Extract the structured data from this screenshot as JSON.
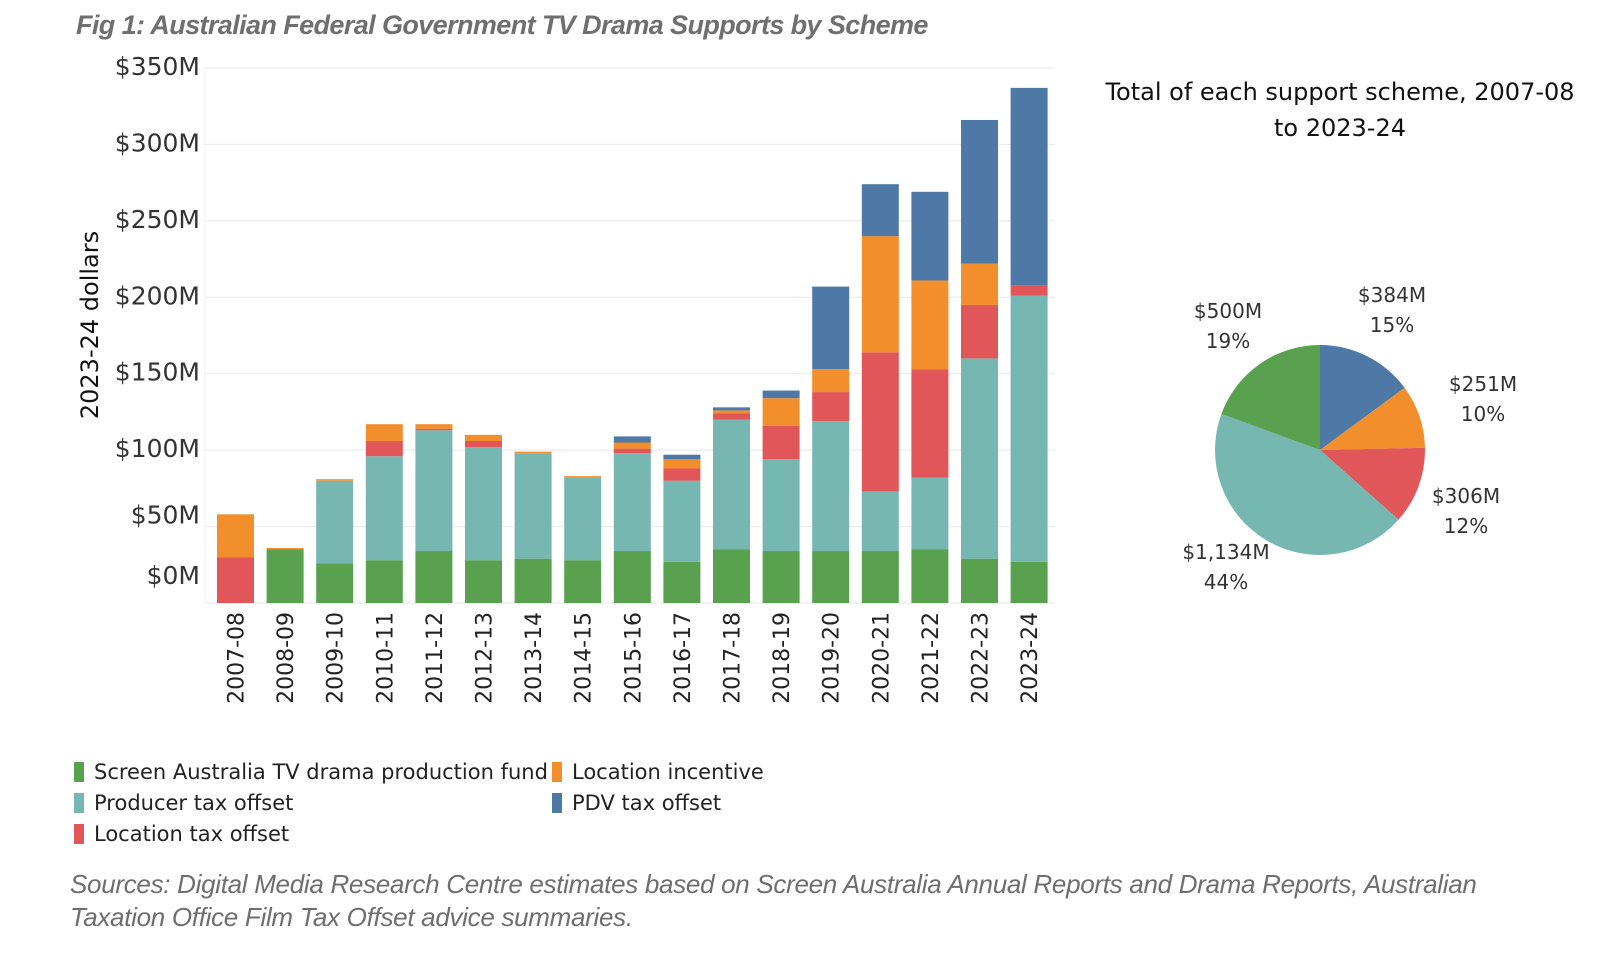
{
  "figure": {
    "title": "Fig 1: Australian Federal Government TV Drama Supports by Scheme",
    "sources": "Sources: Digital Media Research Centre estimates based on Screen Australia Annual Reports and Drama Reports, Australian Taxation Office Film Tax Offset advice summaries."
  },
  "legend": [
    {
      "label": "Screen Australia TV drama production fund",
      "color": "#59a14f"
    },
    {
      "label": "Location incentive",
      "color": "#f28e2b"
    },
    {
      "label": "Producer tax offset",
      "color": "#76b7b2"
    },
    {
      "label": "PDV tax offset",
      "color": "#4e79a7"
    },
    {
      "label": "Location tax offset",
      "color": "#e15759"
    }
  ],
  "chart_data": [
    {
      "type": "bar",
      "stacked": true,
      "title": "Fig 1: Australian Federal Government TV Drama Supports by Scheme",
      "xlabel": "",
      "ylabel": "2023-24 dollars",
      "ylim": [
        0,
        350
      ],
      "yticks": [
        0,
        50,
        100,
        150,
        200,
        250,
        300,
        350
      ],
      "ytick_labels": [
        "$0M",
        "$50M",
        "$100M",
        "$150M",
        "$200M",
        "$250M",
        "$300M",
        "$350M"
      ],
      "grid": true,
      "legend_position": "bottom",
      "units": "$M",
      "categories": [
        "2007-08",
        "2008-09",
        "2009-10",
        "2010-11",
        "2011-12",
        "2012-13",
        "2013-14",
        "2014-15",
        "2015-16",
        "2016-17",
        "2017-18",
        "2018-19",
        "2019-20",
        "2020-21",
        "2021-22",
        "2022-23",
        "2023-24"
      ],
      "series": [
        {
          "name": "Screen Australia TV drama production fund",
          "color": "#59a14f",
          "values": [
            0,
            35,
            26,
            28,
            34,
            28,
            29,
            28,
            34,
            27,
            35,
            34,
            34,
            34,
            35,
            29,
            27
          ]
        },
        {
          "name": "Producer tax offset",
          "color": "#76b7b2",
          "values": [
            0,
            0,
            54,
            68,
            79,
            74,
            69,
            54,
            64,
            53,
            85,
            60,
            85,
            39,
            47,
            131,
            174
          ]
        },
        {
          "name": "Location tax offset",
          "color": "#e15759",
          "values": [
            30,
            0,
            0,
            10,
            1,
            4,
            0,
            0,
            3,
            8,
            4,
            22,
            19,
            91,
            71,
            35,
            7
          ]
        },
        {
          "name": "Location incentive",
          "color": "#f28e2b",
          "values": [
            28,
            1,
            1,
            11,
            3,
            4,
            1,
            1,
            4,
            6,
            2,
            18,
            15,
            76,
            58,
            27,
            0
          ]
        },
        {
          "name": "PDV tax offset",
          "color": "#4e79a7",
          "values": [
            0,
            0,
            0,
            0,
            0,
            0,
            0,
            0,
            4,
            3,
            2,
            5,
            54,
            34,
            58,
            94,
            129
          ]
        }
      ]
    },
    {
      "type": "pie",
      "title": "Total of each support scheme, 2007-08 to 2023-24",
      "start": "top",
      "direction": "clockwise",
      "slices": [
        {
          "name": "PDV tax offset",
          "value": 384,
          "label": "$384M",
          "percent": "15%",
          "color": "#4e79a7"
        },
        {
          "name": "Location incentive",
          "value": 251,
          "label": "$251M",
          "percent": "10%",
          "color": "#f28e2b"
        },
        {
          "name": "Location tax offset",
          "value": 306,
          "label": "$306M",
          "percent": "12%",
          "color": "#e15759"
        },
        {
          "name": "Producer tax offset",
          "value": 1134,
          "label": "$1,134M",
          "percent": "44%",
          "color": "#76b7b2"
        },
        {
          "name": "Screen Australia TV drama production fund",
          "value": 500,
          "label": "$500M",
          "percent": "19%",
          "color": "#59a14f"
        }
      ]
    }
  ]
}
